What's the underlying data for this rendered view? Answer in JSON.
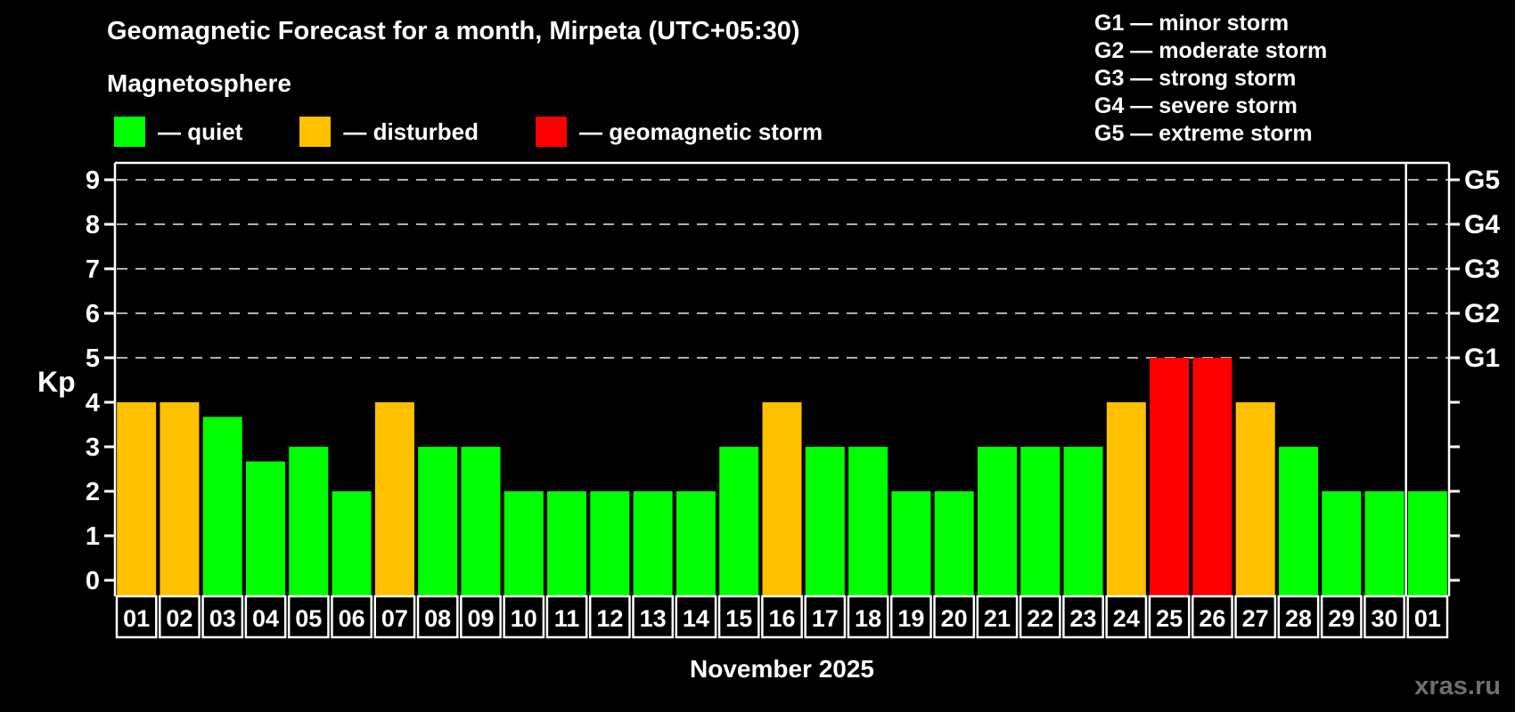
{
  "header": {
    "title": "Geomagnetic Forecast for a month, Mirpeta (UTC+05:30)",
    "subtitle": "Magnetosphere"
  },
  "legend": [
    {
      "key": "quiet",
      "label": "— quiet",
      "color": "#00ff00"
    },
    {
      "key": "disturbed",
      "label": "— disturbed",
      "color": "#ffc000"
    },
    {
      "key": "storm",
      "label": "— geomagnetic storm",
      "color": "#ff0000"
    }
  ],
  "g_legend": [
    "G1 — minor storm",
    "G2 — moderate storm",
    "G3 — strong storm",
    "G4 — severe storm",
    "G5 — extreme storm"
  ],
  "watermark": "xras.ru",
  "chart_data": {
    "type": "bar",
    "title": "Geomagnetic Forecast for a month, Mirpeta (UTC+05:30)",
    "xlabel": "November 2025",
    "ylabel": "Kp",
    "ylim": [
      0,
      9.4
    ],
    "yticks": [
      0,
      1,
      2,
      3,
      4,
      5,
      6,
      7,
      8,
      9
    ],
    "gridline_values": [
      5,
      6,
      7,
      8,
      9
    ],
    "grid": "dashed horizontal lines at Kp 5-9 only",
    "right_axis_labels": [
      {
        "kp": 5,
        "label": "G1"
      },
      {
        "kp": 6,
        "label": "G2"
      },
      {
        "kp": 7,
        "label": "G3"
      },
      {
        "kp": 8,
        "label": "G4"
      },
      {
        "kp": 9,
        "label": "G5"
      }
    ],
    "categories": [
      "01",
      "02",
      "03",
      "04",
      "05",
      "06",
      "07",
      "08",
      "09",
      "10",
      "11",
      "12",
      "13",
      "14",
      "15",
      "16",
      "17",
      "18",
      "19",
      "20",
      "21",
      "22",
      "23",
      "24",
      "25",
      "26",
      "27",
      "28",
      "29",
      "30",
      "01"
    ],
    "values": [
      4,
      4,
      3.67,
      2.67,
      3,
      2,
      4,
      3,
      3,
      2,
      2,
      2,
      2,
      2,
      3,
      4,
      3,
      3,
      2,
      2,
      3,
      3,
      3,
      4,
      5,
      5,
      4,
      3,
      2,
      2,
      2
    ],
    "statuses": [
      "disturbed",
      "disturbed",
      "quiet",
      "quiet",
      "quiet",
      "quiet",
      "disturbed",
      "quiet",
      "quiet",
      "quiet",
      "quiet",
      "quiet",
      "quiet",
      "quiet",
      "quiet",
      "disturbed",
      "quiet",
      "quiet",
      "quiet",
      "quiet",
      "quiet",
      "quiet",
      "quiet",
      "disturbed",
      "storm",
      "storm",
      "disturbed",
      "quiet",
      "quiet",
      "quiet",
      "quiet"
    ],
    "colors": {
      "quiet": "#00ff00",
      "disturbed": "#ffc000",
      "storm": "#ff0000"
    },
    "month_separator_after_index": 29,
    "axis_color": "#ffffff",
    "gridline_color": "#b0b0b0"
  }
}
